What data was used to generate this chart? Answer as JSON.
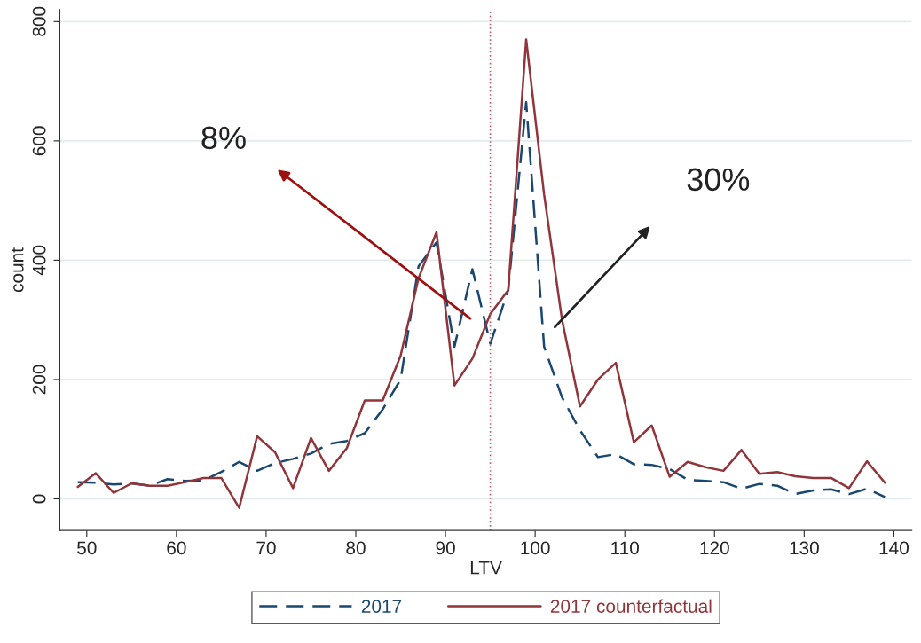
{
  "chart_data": {
    "type": "line",
    "xlabel": "LTV",
    "ylabel": "count",
    "x": [
      49,
      51,
      53,
      55,
      57,
      59,
      61,
      63,
      65,
      67,
      69,
      71,
      73,
      75,
      77,
      79,
      81,
      83,
      85,
      87,
      89,
      91,
      93,
      95,
      97,
      99,
      101,
      103,
      105,
      107,
      109,
      111,
      113,
      115,
      117,
      119,
      121,
      123,
      125,
      127,
      129,
      131,
      133,
      135,
      137,
      139
    ],
    "series": [
      {
        "name": "2017",
        "color": "#1a476f",
        "line_style": "dashed",
        "values": [
          28,
          27,
          24,
          26,
          22,
          33,
          30,
          31,
          45,
          62,
          47,
          60,
          67,
          76,
          92,
          97,
          110,
          150,
          200,
          390,
          430,
          255,
          385,
          260,
          350,
          665,
          255,
          170,
          115,
          70,
          75,
          58,
          57,
          50,
          32,
          30,
          28,
          17,
          25,
          22,
          8,
          14,
          16,
          8,
          17,
          3
        ]
      },
      {
        "name": "2017 counterfactual",
        "color": "#90353b",
        "line_style": "solid",
        "values": [
          20,
          43,
          10,
          26,
          22,
          22,
          28,
          35,
          35,
          -15,
          105,
          78,
          18,
          102,
          47,
          85,
          165,
          165,
          240,
          370,
          447,
          190,
          235,
          310,
          350,
          770,
          510,
          300,
          155,
          200,
          228,
          95,
          123,
          37,
          62,
          53,
          47,
          82,
          42,
          45,
          38,
          35,
          35,
          18,
          63,
          27
        ]
      }
    ],
    "xlim": [
      47,
      142
    ],
    "ylim": [
      -53,
      820
    ],
    "xticks": [
      50,
      60,
      70,
      80,
      90,
      100,
      110,
      120,
      130,
      140
    ],
    "yticks": [
      0,
      200,
      400,
      600,
      800
    ],
    "grid": "y",
    "legend": "bottom",
    "ref_lines": [
      {
        "axis": "x",
        "value": 95,
        "color": "#c06070",
        "line_style": "dotted"
      }
    ],
    "annotations": [
      "8%",
      "30%"
    ]
  }
}
